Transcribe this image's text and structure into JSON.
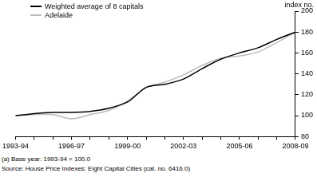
{
  "chart_data": {
    "type": "line",
    "categories": [
      "1993-94",
      null,
      null,
      "1996-97",
      null,
      null,
      "1999-00",
      null,
      null,
      "2002-03",
      null,
      null,
      "2005-06",
      null,
      null,
      "2008-09"
    ],
    "series": [
      {
        "name": "Weighted average of 8 capitals",
        "color": "#000000",
        "values": [
          100,
          102,
          103,
          103,
          104,
          107,
          113,
          127,
          130,
          135,
          145,
          154,
          160,
          165,
          173,
          180
        ]
      },
      {
        "name": "Adelaide",
        "color": "#bbbbbb",
        "values": [
          100,
          101,
          101,
          97,
          101,
          105,
          114,
          127,
          132,
          139,
          148,
          155,
          157,
          161,
          170,
          180
        ]
      }
    ],
    "y_label": "index no.",
    "ylim": [
      80,
      200
    ],
    "yticks": [
      80,
      100,
      120,
      140,
      160,
      180,
      200
    ],
    "grid": false,
    "legend": "upper left",
    "annotations": [
      "(a) Base year: 1993-94 = 100.0",
      "Source: House Price Indexes: Eight Capital Cities (cat. no. 6416.0)"
    ]
  }
}
